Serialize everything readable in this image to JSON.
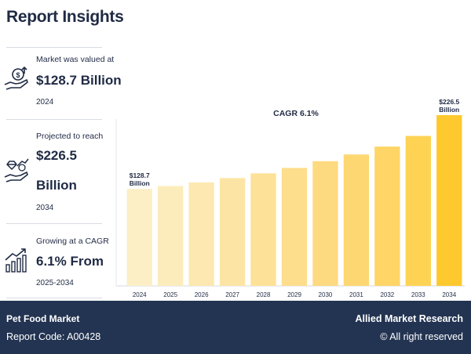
{
  "header": {
    "title": "Report Insights"
  },
  "stats": [
    {
      "label": "Market was valued at",
      "value": "$128.7 Billion",
      "sub": "2024",
      "icon": "money-hand-icon"
    },
    {
      "label": "Projected to reach",
      "value_line1": "$226.5",
      "value_line2": "Billion",
      "sub": "2034",
      "icon": "diamond-hand-icon"
    },
    {
      "label": "Growing at a CAGR",
      "value": "6.1% From",
      "sub": "2025-2034",
      "icon": "growth-chart-icon"
    }
  ],
  "chart_data": {
    "type": "bar",
    "title": "CAGR 6.1%",
    "categories": [
      "2024",
      "2025",
      "2026",
      "2027",
      "2028",
      "2029",
      "2030",
      "2031",
      "2032",
      "2033",
      "2034"
    ],
    "values": [
      128.7,
      132.5,
      137.2,
      143.0,
      149.3,
      156.5,
      165.4,
      174.3,
      184.8,
      198.9,
      226.5
    ],
    "ylim": [
      0,
      240
    ],
    "annotations": [
      {
        "index": 0,
        "line1": "$128.7",
        "line2": "Billion"
      },
      {
        "index": 10,
        "line1": "$226.5",
        "line2": "Billion"
      }
    ],
    "colors": [
      "#fcefc6",
      "#fcecbc",
      "#fce8b0",
      "#fce5a4",
      "#fde198",
      "#fdde8c",
      "#fdda7f",
      "#fdd772",
      "#fed566",
      "#fed354",
      "#fec92e"
    ]
  },
  "footer": {
    "market": "Pet Food Market",
    "report_code": "Report Code: A00428",
    "brand": "Allied Market Research",
    "rights": "© All right reserved"
  },
  "theme": {
    "navy": "#233452",
    "text": "#1f2a44"
  }
}
